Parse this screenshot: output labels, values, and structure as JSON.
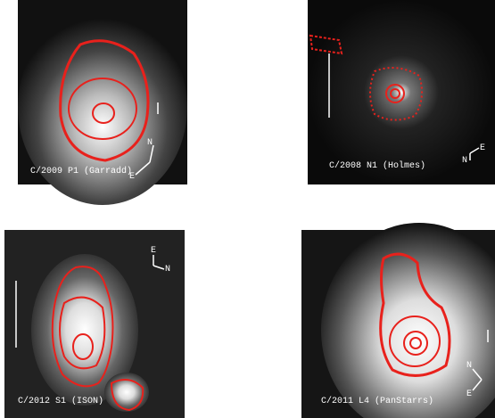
{
  "panels": [
    {
      "label": "C/2009 P1 (Garradd)",
      "compass": {
        "north": "N",
        "east": "E"
      }
    },
    {
      "label": "C/2008 N1 (Holmes)",
      "compass": {
        "north": "N",
        "east": "E"
      }
    },
    {
      "label": "C/2012 S1 (ISON)",
      "compass": {
        "north": "N",
        "east": "E"
      }
    },
    {
      "label": "C/2011 L4 (PanStarrs)",
      "compass": {
        "north": "N",
        "east": "E"
      }
    }
  ]
}
